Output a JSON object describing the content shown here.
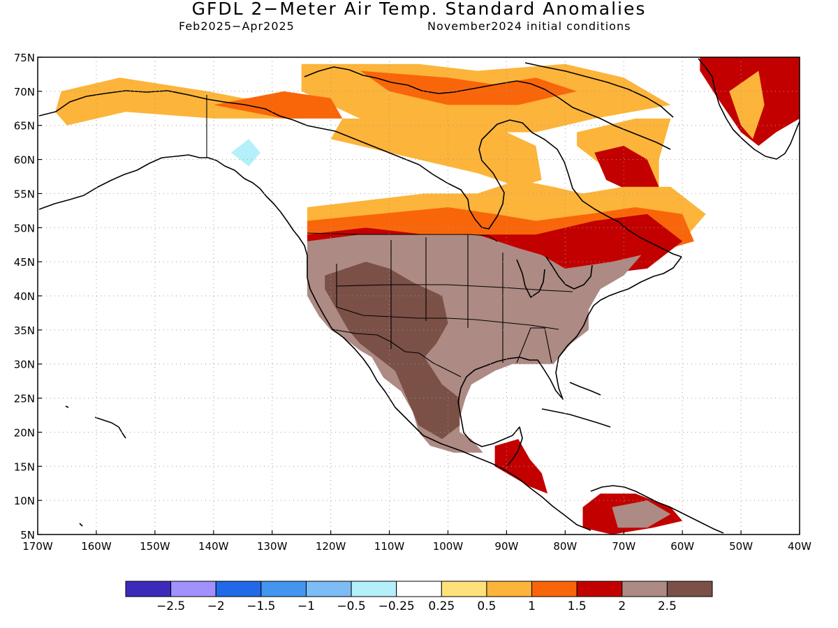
{
  "title": "GFDL 2−Meter Air Temp. Standard Anomalies",
  "subtitle_left": "Feb2025−Apr2025",
  "subtitle_right": "November2024 initial conditions",
  "chart_data": {
    "type": "heatmap",
    "title": "GFDL 2−Meter Air Temp. Standard Anomalies",
    "lon_range": [
      -170,
      -40
    ],
    "lat_range": [
      5,
      75
    ],
    "lat_ticks": [
      {
        "value": 75,
        "label": "75N"
      },
      {
        "value": 70,
        "label": "70N"
      },
      {
        "value": 65,
        "label": "65N"
      },
      {
        "value": 60,
        "label": "60N"
      },
      {
        "value": 55,
        "label": "55N"
      },
      {
        "value": 50,
        "label": "50N"
      },
      {
        "value": 45,
        "label": "45N"
      },
      {
        "value": 40,
        "label": "40N"
      },
      {
        "value": 35,
        "label": "35N"
      },
      {
        "value": 30,
        "label": "30N"
      },
      {
        "value": 25,
        "label": "25N"
      },
      {
        "value": 20,
        "label": "20N"
      },
      {
        "value": 15,
        "label": "15N"
      },
      {
        "value": 10,
        "label": "10N"
      },
      {
        "value": 5,
        "label": "5N"
      }
    ],
    "lon_ticks": [
      {
        "value": -170,
        "label": "170W"
      },
      {
        "value": -160,
        "label": "160W"
      },
      {
        "value": -150,
        "label": "150W"
      },
      {
        "value": -140,
        "label": "140W"
      },
      {
        "value": -130,
        "label": "130W"
      },
      {
        "value": -120,
        "label": "120W"
      },
      {
        "value": -110,
        "label": "110W"
      },
      {
        "value": -100,
        "label": "100W"
      },
      {
        "value": -90,
        "label": "90W"
      },
      {
        "value": -80,
        "label": "80W"
      },
      {
        "value": -70,
        "label": "70W"
      },
      {
        "value": -60,
        "label": "60W"
      },
      {
        "value": -50,
        "label": "50W"
      },
      {
        "value": -40,
        "label": "40W"
      }
    ],
    "grid": true,
    "colorbar": {
      "colors": [
        "#3c2bbb",
        "#a091ff",
        "#2169e8",
        "#4396f0",
        "#7dbcf5",
        "#b4f0fa",
        "#ffffff",
        "#fee17b",
        "#fcb43a",
        "#f9660a",
        "#c30000",
        "#ad8a83",
        "#7a5047"
      ],
      "labels": [
        "−2.5",
        "−2",
        "−1.5",
        "−1",
        "−0.5",
        "−0.25",
        "0.25",
        "0.5",
        "1",
        "1.5",
        "2",
        "2.5"
      ]
    },
    "regions": [
      {
        "name": "greenland-warm",
        "level": 1.5,
        "points": [
          [
            -57,
            75
          ],
          [
            -40,
            75
          ],
          [
            -40,
            66
          ],
          [
            -44,
            64
          ],
          [
            -47,
            62
          ],
          [
            -50,
            64
          ],
          [
            -54,
            69
          ],
          [
            -57,
            73
          ]
        ]
      },
      {
        "name": "greenland-mild",
        "level": 0.5,
        "points": [
          [
            -52,
            70
          ],
          [
            -47,
            73
          ],
          [
            -46,
            68
          ],
          [
            -48,
            63
          ],
          [
            -50,
            65
          ]
        ]
      },
      {
        "name": "arctic-islands",
        "level": 0.5,
        "points": [
          [
            -125,
            74
          ],
          [
            -105,
            74
          ],
          [
            -95,
            73
          ],
          [
            -80,
            74
          ],
          [
            -70,
            72
          ],
          [
            -62,
            68
          ],
          [
            -75,
            66
          ],
          [
            -85,
            64
          ],
          [
            -100,
            64
          ],
          [
            -115,
            66
          ],
          [
            -125,
            70
          ]
        ]
      },
      {
        "name": "arctic-islands-warm",
        "level": 1,
        "points": [
          [
            -115,
            73
          ],
          [
            -100,
            72
          ],
          [
            -92,
            71
          ],
          [
            -85,
            72
          ],
          [
            -78,
            70
          ],
          [
            -88,
            68
          ],
          [
            -100,
            68
          ],
          [
            -110,
            70
          ]
        ]
      },
      {
        "name": "alaska-north-coast",
        "level": 0.5,
        "points": [
          [
            -166,
            70
          ],
          [
            -156,
            72
          ],
          [
            -141,
            70
          ],
          [
            -135,
            69
          ],
          [
            -125,
            69
          ],
          [
            -125,
            66
          ],
          [
            -140,
            66
          ],
          [
            -155,
            67
          ],
          [
            -165,
            65
          ],
          [
            -167,
            67
          ]
        ]
      },
      {
        "name": "nw-territories-warm",
        "level": 1,
        "points": [
          [
            -140,
            68
          ],
          [
            -128,
            70
          ],
          [
            -120,
            69
          ],
          [
            -118,
            66
          ],
          [
            -128,
            66
          ]
        ]
      },
      {
        "name": "alaska-cool",
        "level": -0.25,
        "points": [
          [
            -148,
            65
          ],
          [
            -140,
            65
          ],
          [
            -135,
            66
          ],
          [
            -128,
            64
          ],
          [
            -123,
            61
          ],
          [
            -128,
            58
          ],
          [
            -133,
            56
          ],
          [
            -140,
            58
          ],
          [
            -146,
            61
          ]
        ]
      },
      {
        "name": "alaska-cool-core",
        "level": -0.5,
        "points": [
          [
            -137,
            61
          ],
          [
            -134,
            63
          ],
          [
            -132,
            61
          ],
          [
            -134,
            59
          ]
        ]
      },
      {
        "name": "west-canada-cool",
        "level": -0.25,
        "points": [
          [
            -122,
            59
          ],
          [
            -119,
            59
          ],
          [
            -118,
            57
          ],
          [
            -121,
            57
          ]
        ]
      },
      {
        "name": "canada-north-mild",
        "level": 0.5,
        "points": [
          [
            -118,
            66
          ],
          [
            -105,
            66
          ],
          [
            -95,
            64
          ],
          [
            -90,
            64
          ],
          [
            -85,
            62
          ],
          [
            -84,
            57
          ],
          [
            -88,
            56
          ],
          [
            -95,
            58
          ],
          [
            -105,
            60
          ],
          [
            -115,
            62
          ],
          [
            -120,
            63
          ]
        ]
      },
      {
        "name": "labrador-mild",
        "level": 0.5,
        "points": [
          [
            -78,
            64
          ],
          [
            -68,
            66
          ],
          [
            -62,
            66
          ],
          [
            -64,
            60
          ],
          [
            -64,
            56
          ],
          [
            -72,
            58
          ],
          [
            -78,
            62
          ]
        ]
      },
      {
        "name": "labrador-warm",
        "level": 1.5,
        "points": [
          [
            -75,
            61
          ],
          [
            -70,
            62
          ],
          [
            -66,
            60
          ],
          [
            -64,
            56
          ],
          [
            -68,
            55
          ],
          [
            -73,
            57
          ]
        ]
      },
      {
        "name": "canada-prairie-mild",
        "level": 0.5,
        "points": [
          [
            -124,
            53
          ],
          [
            -114,
            54
          ],
          [
            -104,
            55
          ],
          [
            -95,
            55
          ],
          [
            -88,
            57
          ],
          [
            -82,
            56
          ],
          [
            -77,
            55
          ],
          [
            -70,
            56
          ],
          [
            -62,
            56
          ],
          [
            -56,
            52
          ],
          [
            -60,
            48
          ],
          [
            -70,
            46
          ],
          [
            -80,
            44
          ],
          [
            -90,
            46
          ],
          [
            -100,
            48
          ],
          [
            -115,
            48
          ],
          [
            -124,
            49
          ]
        ]
      },
      {
        "name": "canada-prairie-warm",
        "level": 1,
        "points": [
          [
            -124,
            51
          ],
          [
            -112,
            52
          ],
          [
            -100,
            53
          ],
          [
            -92,
            52
          ],
          [
            -85,
            51
          ],
          [
            -76,
            52
          ],
          [
            -68,
            53
          ],
          [
            -60,
            52
          ],
          [
            -58,
            48
          ],
          [
            -70,
            45
          ],
          [
            -80,
            43
          ],
          [
            -95,
            45
          ],
          [
            -110,
            46
          ],
          [
            -124,
            47
          ]
        ]
      },
      {
        "name": "canada-east-strong",
        "level": 1.5,
        "points": [
          [
            -124,
            49
          ],
          [
            -114,
            50
          ],
          [
            -104,
            49
          ],
          [
            -95,
            49
          ],
          [
            -85,
            49
          ],
          [
            -75,
            51
          ],
          [
            -66,
            52
          ],
          [
            -60,
            48
          ],
          [
            -66,
            44
          ],
          [
            -76,
            43
          ],
          [
            -85,
            45
          ],
          [
            -95,
            47
          ],
          [
            -105,
            47
          ],
          [
            -115,
            47
          ],
          [
            -124,
            47
          ]
        ]
      },
      {
        "name": "usa-very-warm",
        "level": 2,
        "points": [
          [
            -124,
            48
          ],
          [
            -115,
            49
          ],
          [
            -104,
            49
          ],
          [
            -95,
            49
          ],
          [
            -88,
            47
          ],
          [
            -84,
            46
          ],
          [
            -80,
            44
          ],
          [
            -72,
            45
          ],
          [
            -67,
            46
          ],
          [
            -70,
            43
          ],
          [
            -74,
            41
          ],
          [
            -76,
            38
          ],
          [
            -76,
            35
          ],
          [
            -79,
            33
          ],
          [
            -81,
            31
          ],
          [
            -82,
            30
          ],
          [
            -84,
            30
          ],
          [
            -86,
            30
          ],
          [
            -89,
            30
          ],
          [
            -92,
            29
          ],
          [
            -96,
            27
          ],
          [
            -97,
            25
          ],
          [
            -98,
            22
          ],
          [
            -98,
            20
          ],
          [
            -96,
            19
          ],
          [
            -94,
            17
          ],
          [
            -99,
            17
          ],
          [
            -103,
            18
          ],
          [
            -105,
            20
          ],
          [
            -106,
            23
          ],
          [
            -108,
            26
          ],
          [
            -111,
            28
          ],
          [
            -113,
            31
          ],
          [
            -115,
            32
          ],
          [
            -118,
            34
          ],
          [
            -120,
            35
          ],
          [
            -122,
            37
          ],
          [
            -124,
            40
          ],
          [
            -124,
            44
          ]
        ]
      },
      {
        "name": "southwest-extreme",
        "level": 2.5,
        "points": [
          [
            -121,
            43
          ],
          [
            -114,
            45
          ],
          [
            -110,
            44
          ],
          [
            -106,
            42
          ],
          [
            -101,
            40
          ],
          [
            -100,
            36
          ],
          [
            -102,
            33
          ],
          [
            -104,
            31
          ],
          [
            -101,
            27
          ],
          [
            -98,
            25
          ],
          [
            -98,
            21
          ],
          [
            -101,
            19
          ],
          [
            -105,
            21
          ],
          [
            -107,
            25
          ],
          [
            -109,
            29
          ],
          [
            -112,
            31
          ],
          [
            -115,
            33
          ],
          [
            -117,
            35
          ],
          [
            -119,
            38
          ],
          [
            -121,
            41
          ]
        ]
      },
      {
        "name": "central-america-warm",
        "level": 1.5,
        "points": [
          [
            -92,
            18
          ],
          [
            -88,
            19
          ],
          [
            -86,
            16
          ],
          [
            -84,
            14
          ],
          [
            -83,
            11
          ],
          [
            -86,
            12
          ],
          [
            -90,
            14
          ],
          [
            -92,
            15
          ]
        ]
      },
      {
        "name": "south-america-warm",
        "level": 1.5,
        "points": [
          [
            -77,
            9
          ],
          [
            -74,
            11
          ],
          [
            -68,
            11
          ],
          [
            -62,
            9
          ],
          [
            -60,
            7
          ],
          [
            -65,
            6
          ],
          [
            -72,
            5
          ],
          [
            -77,
            6
          ]
        ]
      },
      {
        "name": "south-america-strong",
        "level": 2,
        "points": [
          [
            -72,
            9
          ],
          [
            -66,
            10
          ],
          [
            -62,
            8
          ],
          [
            -66,
            6
          ],
          [
            -71,
            6
          ]
        ]
      }
    ]
  }
}
